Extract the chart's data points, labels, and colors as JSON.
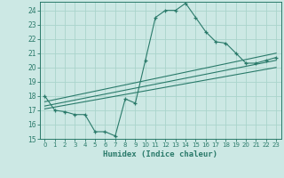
{
  "title": "",
  "xlabel": "Humidex (Indice chaleur)",
  "ylabel": "",
  "background_color": "#cce8e4",
  "grid_color": "#aad4cc",
  "line_color": "#2a7a6a",
  "xlim": [
    -0.5,
    23.5
  ],
  "ylim": [
    15,
    24.6
  ],
  "yticks": [
    15,
    16,
    17,
    18,
    19,
    20,
    21,
    22,
    23,
    24
  ],
  "xticks": [
    0,
    1,
    2,
    3,
    4,
    5,
    6,
    7,
    8,
    9,
    10,
    11,
    12,
    13,
    14,
    15,
    16,
    17,
    18,
    19,
    20,
    21,
    22,
    23
  ],
  "main_x": [
    0,
    1,
    2,
    3,
    4,
    5,
    6,
    7,
    8,
    9,
    10,
    11,
    12,
    13,
    14,
    15,
    16,
    17,
    18,
    19,
    20,
    21,
    22,
    23
  ],
  "main_y": [
    18.0,
    17.0,
    16.9,
    16.7,
    16.7,
    15.5,
    15.5,
    15.2,
    17.8,
    17.5,
    20.5,
    23.5,
    24.0,
    24.0,
    24.5,
    23.5,
    22.5,
    21.8,
    21.7,
    21.0,
    20.3,
    20.3,
    20.5,
    20.7
  ],
  "line2_x": [
    0,
    23
  ],
  "line2_y": [
    17.6,
    21.0
  ],
  "line3_x": [
    0,
    23
  ],
  "line3_y": [
    17.3,
    20.5
  ],
  "line4_x": [
    0,
    23
  ],
  "line4_y": [
    17.1,
    20.0
  ]
}
